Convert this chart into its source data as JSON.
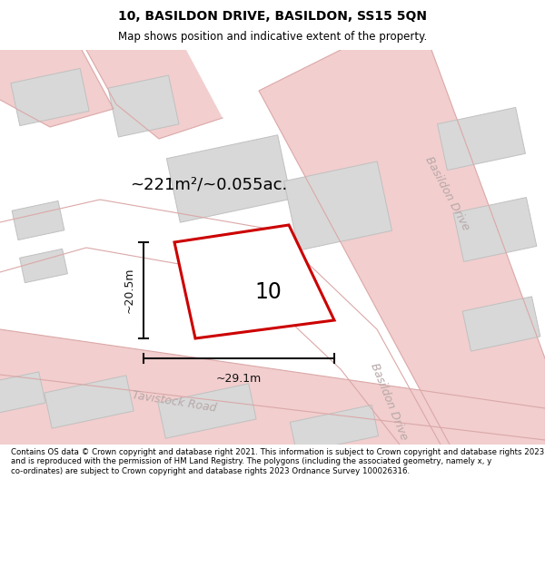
{
  "title": "10, BASILDON DRIVE, BASILDON, SS15 5QN",
  "subtitle": "Map shows position and indicative extent of the property.",
  "footer": "Contains OS data © Crown copyright and database right 2021. This information is subject to Crown copyright and database rights 2023 and is reproduced with the permission of HM Land Registry. The polygons (including the associated geometry, namely x, y co-ordinates) are subject to Crown copyright and database rights 2023 Ordnance Survey 100026316.",
  "area_label": "~221m²/~0.055ac.",
  "width_label": "~29.1m",
  "height_label": "~20.5m",
  "plot_number": "10",
  "road_color_light": "#f2cece",
  "building_color": "#d8d8d8",
  "building_edge": "#c0c0c0",
  "highlight_color": "#cc0000",
  "road_label_color": "#b8a8a8",
  "dim_color": "#111111"
}
